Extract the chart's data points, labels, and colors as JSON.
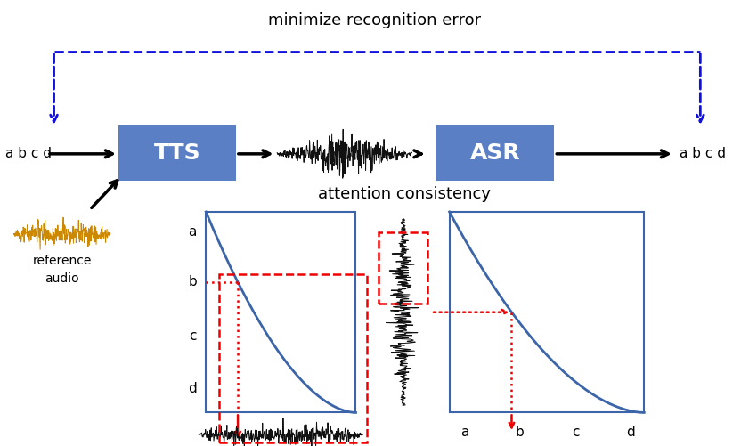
{
  "title": "minimize recognition error",
  "attention_label": "attention consistency",
  "tts_label": "TTS",
  "asr_label": "ASR",
  "ref_label1": "reference",
  "ref_label2": "audio",
  "abcd_labels": "a b c d",
  "box_color": "#5b7fc4",
  "box_text_color": "white",
  "blue_dashed_color": "#1111dd",
  "red_color": "#ee0000",
  "curve_color": "#3b65a8",
  "waveform_color": "#111111",
  "ref_audio_color": "#cc8800",
  "bg_color": "white",
  "fig_w": 8.41,
  "fig_h": 5.01,
  "dpi": 100
}
